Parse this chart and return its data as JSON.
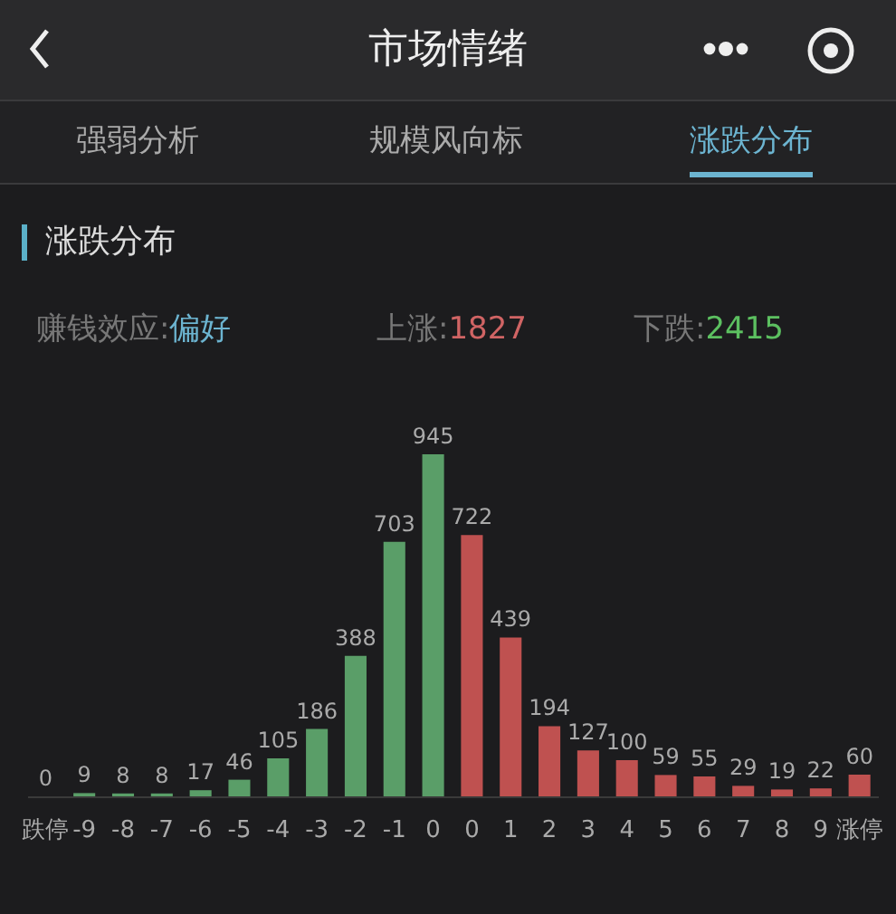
{
  "chart_data": {
    "type": "bar",
    "title": "涨跌分布",
    "subtitle": "市场情绪",
    "annotations": [
      "强弱分析",
      "规模风向标",
      "涨跌分布",
      "赚钱效应:偏好",
      "上涨:1827",
      "下跌:2415"
    ],
    "categories": [
      "跌停",
      "-9",
      "-8",
      "-7",
      "-6",
      "-5",
      "-4",
      "-3",
      "-2",
      "-1",
      "0",
      "0",
      "1",
      "2",
      "3",
      "4",
      "5",
      "6",
      "7",
      "8",
      "9",
      "涨停"
    ],
    "values": [
      0,
      9,
      8,
      8,
      17,
      46,
      105,
      186,
      388,
      703,
      945,
      722,
      439,
      194,
      127,
      100,
      59,
      55,
      29,
      19,
      22,
      60
    ],
    "colors": [
      "#5a9e68",
      "#5a9e68",
      "#5a9e68",
      "#5a9e68",
      "#5a9e68",
      "#5a9e68",
      "#5a9e68",
      "#5a9e68",
      "#5a9e68",
      "#5a9e68",
      "#5a9e68",
      "#bf5150",
      "#bf5150",
      "#bf5150",
      "#bf5150",
      "#bf5150",
      "#bf5150",
      "#bf5150",
      "#bf5150",
      "#bf5150",
      "#bf5150",
      "#bf5150"
    ],
    "data_labels": true
  }
}
